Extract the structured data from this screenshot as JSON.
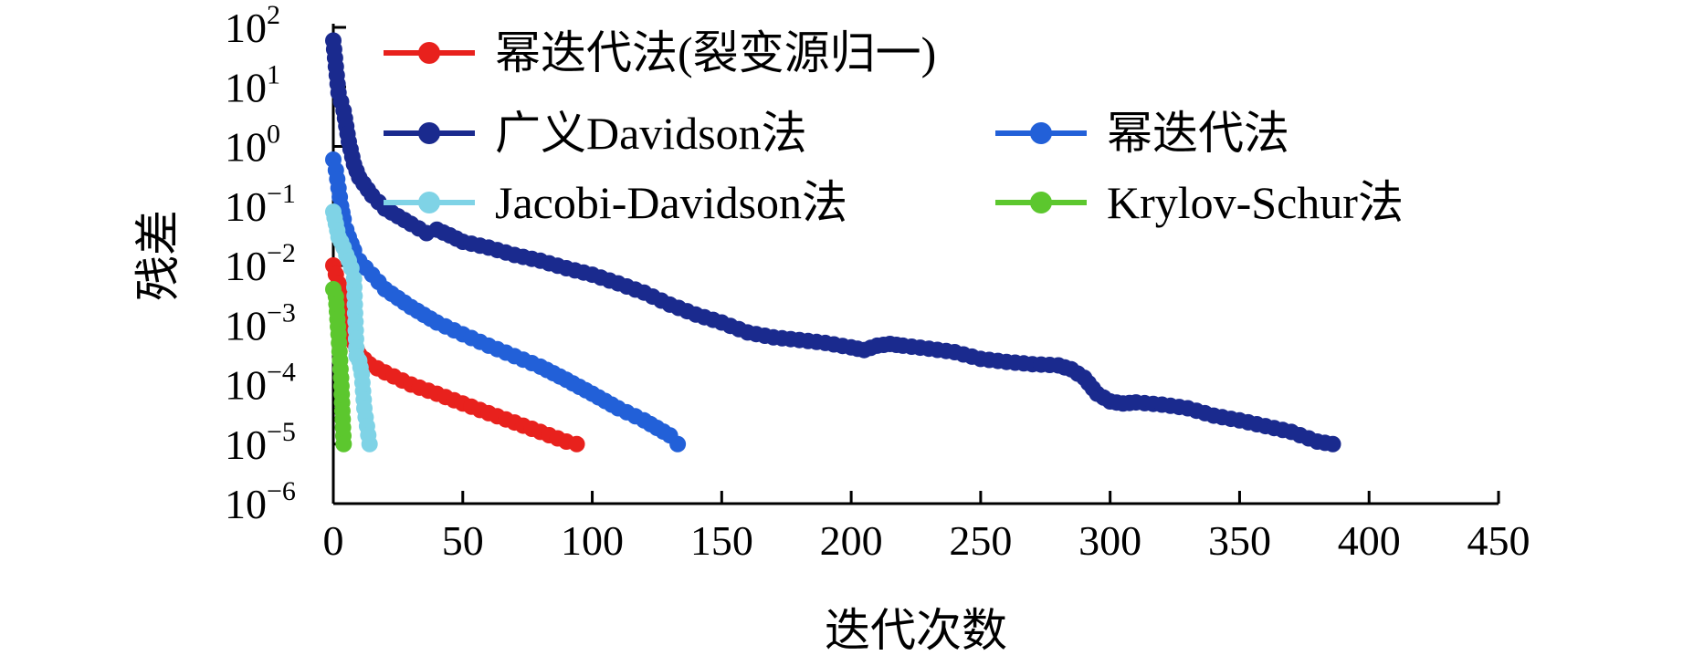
{
  "chart_data": {
    "type": "line",
    "xlabel": "迭代次数",
    "ylabel": "残差",
    "xlim": [
      0,
      450
    ],
    "ylim": [
      1e-06,
      100
    ],
    "yscale": "log",
    "x_ticks": [
      0,
      50,
      100,
      150,
      200,
      250,
      300,
      350,
      400,
      450
    ],
    "y_ticks": [
      {
        "base": "10",
        "exp": "2"
      },
      {
        "base": "10",
        "exp": "1"
      },
      {
        "base": "10",
        "exp": "0"
      },
      {
        "base": "10",
        "exp": "−1"
      },
      {
        "base": "10",
        "exp": "−2"
      },
      {
        "base": "10",
        "exp": "−3"
      },
      {
        "base": "10",
        "exp": "−4"
      },
      {
        "base": "10",
        "exp": "−5"
      },
      {
        "base": "10",
        "exp": "−6"
      }
    ],
    "grid": false,
    "legend_position": "top-right",
    "series": [
      {
        "name": "幂迭代法(裂变源归一)",
        "color": "#e8211d",
        "x": [
          0,
          2,
          4,
          6,
          8,
          10,
          14,
          20,
          30,
          40,
          50,
          60,
          70,
          80,
          90,
          94
        ],
        "y": [
          0.01,
          0.005,
          0.002,
          0.0009,
          0.0005,
          0.00032,
          0.00022,
          0.00016,
          0.0001,
          7e-05,
          4.8e-05,
          3.3e-05,
          2.3e-05,
          1.6e-05,
          1.1e-05,
          1e-05
        ]
      },
      {
        "name": "广义Davidson法",
        "color": "#1a2a8e",
        "x": [
          0,
          2,
          4,
          6,
          8,
          10,
          15,
          20,
          30,
          36,
          40,
          45,
          50,
          60,
          70,
          80,
          90,
          100,
          110,
          120,
          130,
          140,
          150,
          160,
          170,
          180,
          190,
          200,
          205,
          210,
          215,
          220,
          230,
          240,
          250,
          260,
          270,
          280,
          285,
          290,
          295,
          300,
          305,
          310,
          320,
          330,
          340,
          350,
          360,
          370,
          380,
          386
        ],
        "y": [
          60,
          8,
          4,
          1.2,
          0.5,
          0.3,
          0.15,
          0.09,
          0.05,
          0.035,
          0.04,
          0.032,
          0.025,
          0.02,
          0.015,
          0.012,
          0.009,
          0.007,
          0.005,
          0.0035,
          0.0022,
          0.0015,
          0.0011,
          0.00075,
          0.00062,
          0.00056,
          0.0005,
          0.00042,
          0.00038,
          0.00045,
          0.00048,
          0.00045,
          0.0004,
          0.00035,
          0.00027,
          0.00024,
          0.00022,
          0.00021,
          0.00018,
          0.00013,
          7e-05,
          5.2e-05,
          4.8e-05,
          5e-05,
          4.6e-05,
          4e-05,
          3e-05,
          2.5e-05,
          2e-05,
          1.6e-05,
          1.1e-05,
          1e-05
        ]
      },
      {
        "name": "幂迭代法",
        "color": "#2260d8",
        "x": [
          0,
          1,
          2,
          3,
          4,
          5,
          6,
          8,
          10,
          15,
          20,
          30,
          40,
          50,
          60,
          70,
          80,
          90,
          100,
          110,
          120,
          130,
          133
        ],
        "y": [
          0.6,
          0.4,
          0.2,
          0.1,
          0.06,
          0.04,
          0.03,
          0.018,
          0.012,
          0.007,
          0.004,
          0.002,
          0.0011,
          0.0007,
          0.00045,
          0.0003,
          0.0002,
          0.00012,
          7e-05,
          4e-05,
          2.5e-05,
          1.4e-05,
          1e-05
        ]
      },
      {
        "name": "Jacobi-Davidson法",
        "color": "#7fd3e6",
        "x": [
          0,
          1,
          2,
          3,
          4,
          5,
          6,
          7,
          8,
          9,
          10,
          11,
          12,
          13,
          14
        ],
        "y": [
          0.08,
          0.05,
          0.03,
          0.025,
          0.02,
          0.015,
          0.012,
          0.009,
          0.006,
          0.0003,
          0.00025,
          0.00015,
          4e-05,
          2e-05,
          1e-05
        ]
      },
      {
        "name": "Krylov-Schur法",
        "color": "#5cc72e",
        "x": [
          0,
          1,
          2,
          3,
          4
        ],
        "y": [
          0.004,
          0.003,
          0.0007,
          0.00013,
          1e-05
        ]
      }
    ]
  }
}
